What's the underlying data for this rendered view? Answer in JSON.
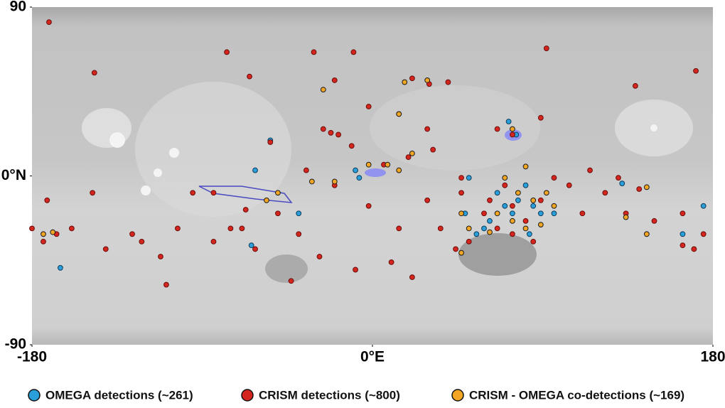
{
  "chart_data": {
    "type": "scatter",
    "xlim": [
      -180,
      180
    ],
    "ylim": [
      -90,
      90
    ],
    "xticks": [
      -180,
      {
        "value": 0,
        "label": "0°E"
      },
      180
    ],
    "yticks": [
      -90,
      {
        "value": 0,
        "label": "0°N"
      },
      90
    ],
    "series": [
      {
        "name": "OMEGA detections (~261)",
        "color": "#2a9fd9",
        "x": [
          66,
          70,
          74,
          77,
          81,
          85,
          89,
          62,
          59,
          49,
          72,
          76,
          -54,
          -62,
          -9,
          -7,
          175,
          164,
          -165,
          -64,
          132,
          96,
          83,
          -39,
          51,
          55
        ],
        "y": [
          -9,
          -16,
          -20,
          -13,
          -5,
          -16,
          -20,
          -24,
          -28,
          -20,
          29,
          22,
          19,
          3,
          3,
          -1,
          -16,
          -31,
          -49,
          -37,
          -4,
          -20,
          -31,
          -20,
          -1,
          -31
        ]
      },
      {
        "name": "CRISM detections (~800)",
        "color": "#d4261f",
        "x": [
          -171,
          -147,
          -77,
          -31,
          -10,
          92,
          171,
          -65,
          -20,
          40,
          139,
          -26,
          -22,
          -18,
          -2,
          14,
          29,
          32,
          -54,
          -35,
          -20,
          -2,
          14,
          29,
          47,
          59,
          66,
          74,
          81,
          89,
          96,
          104,
          111,
          123,
          134,
          149,
          164,
          175,
          -180,
          -174,
          -167,
          -159,
          -141,
          -122,
          -103,
          -84,
          -69,
          -62,
          -50,
          -39,
          -28,
          -9,
          10,
          21,
          36,
          47,
          66,
          74,
          -84,
          -95,
          -148,
          -172,
          -109,
          -43,
          164,
          170,
          44,
          51,
          62,
          70,
          74,
          85,
          115,
          130,
          141,
          21,
          30,
          89,
          19,
          6,
          -11,
          -67,
          -75,
          -127,
          -112
        ],
        "y": [
          82,
          55,
          66,
          66,
          66,
          68,
          56,
          53,
          51,
          50,
          48,
          25,
          23,
          22,
          37,
          33,
          25,
          14,
          18,
          3,
          -5,
          -16,
          -28,
          -13,
          -9,
          -20,
          -28,
          -16,
          -24,
          -13,
          -1,
          -5,
          -20,
          -9,
          -20,
          -24,
          -20,
          -31,
          -28,
          -35,
          -31,
          -28,
          -39,
          -35,
          -28,
          -35,
          -28,
          -39,
          -20,
          -31,
          -43,
          -50,
          -46,
          -54,
          -28,
          -1,
          25,
          22,
          -9,
          -9,
          -9,
          -13,
          -58,
          -56,
          -37,
          -39,
          -39,
          -35,
          -13,
          -5,
          -31,
          -35,
          3,
          -1,
          -7,
          52,
          49,
          31,
          10,
          6,
          16,
          -18,
          -28,
          -31,
          -43
        ]
      },
      {
        "name": "CRISM - OMEGA co-detections (~169)",
        "color": "#f2a623",
        "x": [
          17,
          29,
          74,
          81,
          70,
          77,
          85,
          92,
          66,
          74,
          81,
          89,
          96,
          47,
          51,
          62,
          14,
          8,
          -2,
          -20,
          -32,
          21,
          -50,
          -56,
          -174,
          -169,
          134,
          145,
          47,
          -26,
          145,
          14
        ],
        "y": [
          50,
          51,
          25,
          5,
          -1,
          -9,
          -13,
          -9,
          -20,
          -24,
          -28,
          -26,
          -16,
          -20,
          -28,
          -30,
          33,
          6,
          6,
          -3,
          -3,
          12,
          -9,
          -13,
          -31,
          -30,
          -22,
          -31,
          -41,
          46,
          -6,
          3
        ]
      }
    ]
  }
}
